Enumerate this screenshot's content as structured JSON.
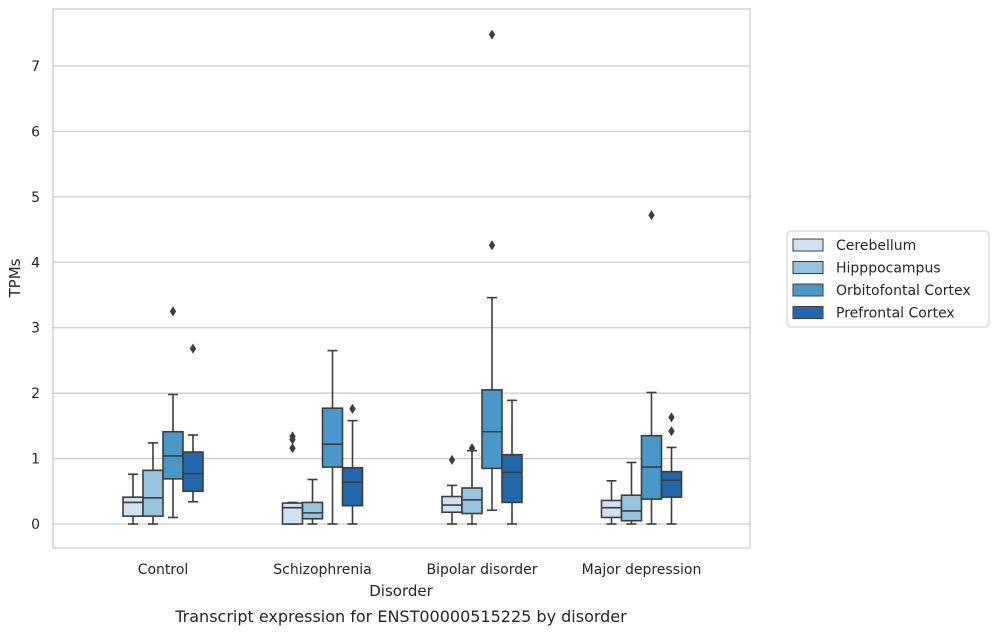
{
  "chart_data": {
    "type": "boxplot",
    "title": "Transcript expression for ENST00000515225 by disorder",
    "xlabel": "Disorder",
    "ylabel": "TPMs",
    "ylim": [
      -0.36,
      7.85
    ],
    "yticks": [
      0,
      1,
      2,
      3,
      4,
      5,
      6,
      7
    ],
    "grid": "horizontal",
    "legend_position": "right",
    "categories": [
      "Control",
      "Schizophrenia",
      "Bipolar disorder",
      "Major depression"
    ],
    "series": [
      {
        "name": "Cerebellum",
        "color": "#d0e1f2",
        "boxes": [
          {
            "whislo": 0.0,
            "q1": 0.12,
            "med": 0.33,
            "q3": 0.41,
            "whishi": 0.76,
            "fliers": []
          },
          {
            "whislo": 0.0,
            "q1": 0.0,
            "med": 0.25,
            "q3": 0.32,
            "whishi": 0.33,
            "fliers": [
              1.16,
              1.29,
              1.34
            ]
          },
          {
            "whislo": 0.0,
            "q1": 0.18,
            "med": 0.29,
            "q3": 0.42,
            "whishi": 0.59,
            "fliers": [
              0.98
            ]
          },
          {
            "whislo": 0.0,
            "q1": 0.1,
            "med": 0.25,
            "q3": 0.36,
            "whishi": 0.66,
            "fliers": []
          }
        ]
      },
      {
        "name": "Hipppocampus",
        "color": "#94c4df",
        "boxes": [
          {
            "whislo": 0.0,
            "q1": 0.12,
            "med": 0.4,
            "q3": 0.82,
            "whishi": 1.24,
            "fliers": []
          },
          {
            "whislo": 0.0,
            "q1": 0.08,
            "med": 0.17,
            "q3": 0.33,
            "whishi": 0.68,
            "fliers": []
          },
          {
            "whislo": 0.0,
            "q1": 0.16,
            "med": 0.37,
            "q3": 0.55,
            "whishi": 1.12,
            "fliers": [
              1.16
            ]
          },
          {
            "whislo": 0.0,
            "q1": 0.05,
            "med": 0.2,
            "q3": 0.44,
            "whishi": 0.94,
            "fliers": []
          }
        ]
      },
      {
        "name": "Orbitofontal Cortex",
        "color": "#4a98c9",
        "boxes": [
          {
            "whislo": 0.1,
            "q1": 0.69,
            "med": 1.04,
            "q3": 1.41,
            "whishi": 1.98,
            "fliers": [
              3.25
            ]
          },
          {
            "whislo": 0.0,
            "q1": 0.87,
            "med": 1.22,
            "q3": 1.77,
            "whishi": 2.65,
            "fliers": []
          },
          {
            "whislo": 0.21,
            "q1": 0.85,
            "med": 1.41,
            "q3": 2.05,
            "whishi": 3.46,
            "fliers": [
              4.26,
              7.48
            ]
          },
          {
            "whislo": 0.0,
            "q1": 0.38,
            "med": 0.87,
            "q3": 1.35,
            "whishi": 2.01,
            "fliers": [
              4.72
            ]
          }
        ]
      },
      {
        "name": "Prefrontal Cortex",
        "color": "#2267ac",
        "boxes": [
          {
            "whislo": 0.34,
            "q1": 0.5,
            "med": 0.77,
            "q3": 1.1,
            "whishi": 1.36,
            "fliers": [
              2.68
            ]
          },
          {
            "whislo": 0.0,
            "q1": 0.28,
            "med": 0.64,
            "q3": 0.86,
            "whishi": 1.58,
            "fliers": [
              1.76
            ]
          },
          {
            "whislo": 0.0,
            "q1": 0.33,
            "med": 0.79,
            "q3": 1.06,
            "whishi": 1.89,
            "fliers": []
          },
          {
            "whislo": 0.0,
            "q1": 0.41,
            "med": 0.67,
            "q3": 0.8,
            "whishi": 1.17,
            "fliers": [
              1.42,
              1.63
            ]
          }
        ]
      }
    ]
  }
}
